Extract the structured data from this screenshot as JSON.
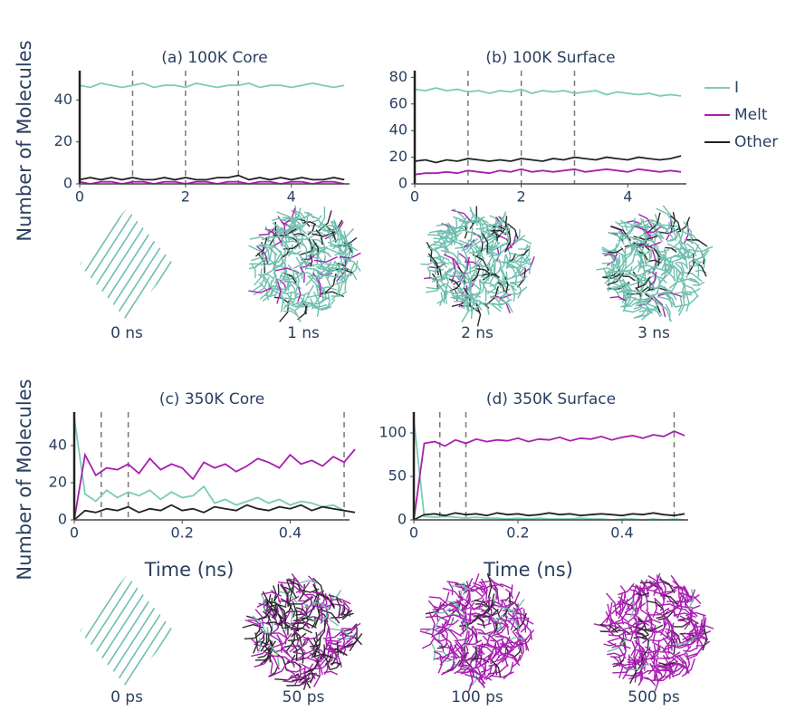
{
  "chart_data": [
    {
      "type": "line",
      "title": "(a) 100K Core",
      "y_label": "Number of Molecules",
      "x": [
        0,
        0.2,
        0.4,
        0.6,
        0.8,
        1,
        1.2,
        1.4,
        1.6,
        1.8,
        2,
        2.2,
        2.4,
        2.6,
        2.8,
        3,
        3.2,
        3.4,
        3.6,
        3.8,
        4,
        4.2,
        4.4,
        4.6,
        4.8,
        5
      ],
      "series": [
        {
          "name": "I",
          "color": "#7ccbbb",
          "values": [
            47,
            46,
            48,
            47,
            46,
            47,
            48,
            46,
            47,
            47,
            46,
            48,
            47,
            46,
            47,
            47,
            48,
            46,
            47,
            47,
            46,
            47,
            48,
            47,
            46,
            47
          ]
        },
        {
          "name": "Melt",
          "color": "#a81fb0",
          "values": [
            1,
            0,
            1,
            1,
            0,
            1,
            1,
            0,
            1,
            1,
            0,
            1,
            1,
            0,
            1,
            1,
            0,
            1,
            1,
            0,
            1,
            1,
            0,
            1,
            1,
            0
          ]
        },
        {
          "name": "Other",
          "color": "#222222",
          "values": [
            2,
            3,
            2,
            3,
            2,
            3,
            2,
            2,
            3,
            2,
            3,
            2,
            2,
            3,
            3,
            4,
            2,
            3,
            2,
            3,
            2,
            3,
            2,
            2,
            3,
            2
          ]
        }
      ],
      "xlim": [
        0,
        5.1
      ],
      "ylim": [
        0,
        54
      ],
      "xticks": [
        0,
        2,
        4
      ],
      "yticks": [
        0,
        20,
        40
      ],
      "vlines": [
        1,
        2,
        3
      ]
    },
    {
      "type": "line",
      "title": "(b) 100K Surface",
      "x": [
        0,
        0.2,
        0.4,
        0.6,
        0.8,
        1,
        1.2,
        1.4,
        1.6,
        1.8,
        2,
        2.2,
        2.4,
        2.6,
        2.8,
        3,
        3.2,
        3.4,
        3.6,
        3.8,
        4,
        4.2,
        4.4,
        4.6,
        4.8,
        5
      ],
      "series": [
        {
          "color": "#7ccbbb",
          "values": [
            71,
            70,
            72,
            70,
            71,
            69,
            70,
            68,
            70,
            69,
            71,
            68,
            70,
            69,
            70,
            68,
            69,
            70,
            67,
            69,
            68,
            67,
            68,
            66,
            67,
            66
          ]
        },
        {
          "color": "#a81fb0",
          "values": [
            7,
            8,
            8,
            9,
            8,
            10,
            9,
            8,
            10,
            9,
            11,
            9,
            10,
            9,
            10,
            11,
            9,
            10,
            11,
            10,
            9,
            11,
            10,
            9,
            10,
            9
          ]
        },
        {
          "color": "#222222",
          "values": [
            17,
            18,
            16,
            18,
            17,
            19,
            18,
            17,
            18,
            17,
            19,
            18,
            17,
            19,
            18,
            20,
            19,
            18,
            20,
            19,
            18,
            20,
            19,
            18,
            19,
            21
          ]
        }
      ],
      "xlim": [
        0,
        5.1
      ],
      "ylim": [
        0,
        85
      ],
      "xticks": [
        0,
        2,
        4
      ],
      "yticks": [
        0,
        20,
        40,
        60,
        80
      ],
      "vlines": [
        1,
        2,
        3
      ]
    },
    {
      "type": "line",
      "title": "(c) 350K Core",
      "y_label": "Number of Molecules",
      "x_label": "Time (ns)",
      "x": [
        0,
        0.02,
        0.04,
        0.06,
        0.08,
        0.1,
        0.12,
        0.14,
        0.16,
        0.18,
        0.2,
        0.22,
        0.24,
        0.26,
        0.28,
        0.3,
        0.32,
        0.34,
        0.36,
        0.38,
        0.4,
        0.42,
        0.44,
        0.46,
        0.48,
        0.5,
        0.52
      ],
      "series": [
        {
          "color": "#7ccbbb",
          "values": [
            55,
            14,
            10,
            16,
            12,
            15,
            13,
            16,
            11,
            15,
            12,
            13,
            18,
            9,
            11,
            8,
            10,
            12,
            9,
            11,
            8,
            10,
            9,
            7,
            8,
            5,
            4
          ]
        },
        {
          "color": "#a81fb0",
          "values": [
            0,
            35,
            24,
            28,
            27,
            30,
            25,
            33,
            27,
            30,
            28,
            22,
            31,
            28,
            30,
            26,
            29,
            33,
            31,
            28,
            35,
            30,
            32,
            29,
            34,
            31,
            38
          ]
        },
        {
          "color": "#222222",
          "values": [
            0,
            5,
            4,
            6,
            5,
            7,
            4,
            6,
            5,
            8,
            5,
            6,
            4,
            7,
            6,
            5,
            8,
            6,
            5,
            7,
            6,
            8,
            5,
            7,
            6,
            5,
            4
          ]
        }
      ],
      "xlim": [
        0,
        0.51
      ],
      "ylim": [
        0,
        58
      ],
      "xticks": [
        0,
        0.2,
        0.4
      ],
      "yticks": [
        0,
        20,
        40
      ],
      "vlines": [
        0.05,
        0.1,
        0.5
      ]
    },
    {
      "type": "line",
      "title": "(d) 350K Surface",
      "x_label": "Time (ns)",
      "x": [
        0,
        0.02,
        0.04,
        0.06,
        0.08,
        0.1,
        0.12,
        0.14,
        0.16,
        0.18,
        0.2,
        0.22,
        0.24,
        0.26,
        0.28,
        0.3,
        0.32,
        0.34,
        0.36,
        0.38,
        0.4,
        0.42,
        0.44,
        0.46,
        0.48,
        0.5,
        0.52
      ],
      "series": [
        {
          "color": "#7ccbbb",
          "values": [
            115,
            4,
            3,
            4,
            3,
            2,
            3,
            2,
            2,
            1,
            2,
            1,
            2,
            1,
            1,
            1,
            2,
            1,
            1,
            0,
            1,
            1,
            0,
            1,
            0,
            1,
            0
          ]
        },
        {
          "color": "#a81fb0",
          "values": [
            0,
            88,
            90,
            85,
            92,
            88,
            93,
            90,
            92,
            91,
            94,
            90,
            93,
            92,
            95,
            91,
            94,
            93,
            96,
            92,
            95,
            97,
            94,
            98,
            96,
            102,
            97
          ]
        },
        {
          "color": "#222222",
          "values": [
            0,
            6,
            7,
            5,
            8,
            6,
            7,
            5,
            8,
            6,
            7,
            5,
            6,
            8,
            6,
            7,
            5,
            6,
            7,
            6,
            5,
            7,
            6,
            8,
            6,
            5,
            7
          ]
        }
      ],
      "xlim": [
        0,
        0.527
      ],
      "ylim": [
        0,
        124
      ],
      "xticks": [
        0,
        0.2,
        0.4
      ],
      "yticks": [
        0,
        50,
        100
      ],
      "vlines": [
        0.05,
        0.1,
        0.5
      ]
    }
  ],
  "snapshots": [
    [
      "0 ns",
      "1 ns",
      "2 ns",
      "3 ns"
    ],
    [
      "0 ps",
      "50 ps",
      "100 ps",
      "500 ps"
    ]
  ]
}
